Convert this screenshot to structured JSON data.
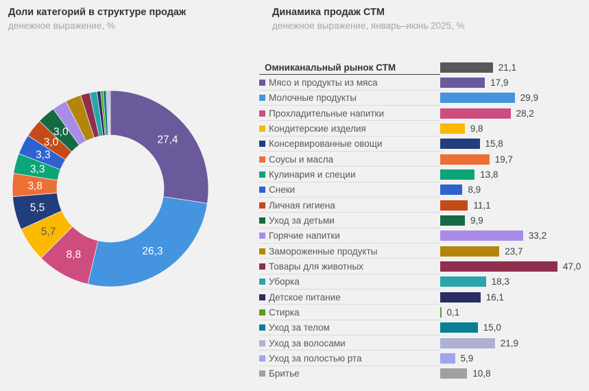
{
  "chart_data": [
    {
      "type": "pie",
      "donut": true,
      "title": "Доли категорий в структуре продаж",
      "subtitle": "денежное выражение, %",
      "start_angle_deg": 0,
      "direction": "clockwise",
      "legend_position": "none",
      "slices": [
        {
          "name": "Мясо и продукты из мяса",
          "value": 27.4,
          "label": "27,4",
          "label_color": "#ffffff",
          "color": "#6a5a9b"
        },
        {
          "name": "Молочные продукты",
          "value": 26.3,
          "label": "26,3",
          "label_color": "#ffffff",
          "color": "#4494e0"
        },
        {
          "name": "Прохладительные напитки",
          "value": 8.8,
          "label": "8,8",
          "label_color": "#ffffff",
          "color": "#ce4d7e"
        },
        {
          "name": "Кондитерские изделия",
          "value": 5.7,
          "label": "5,7",
          "label_color": "#595959",
          "color": "#fdb800"
        },
        {
          "name": "Консервированные овощи",
          "value": 5.5,
          "label": "5,5",
          "label_color": "#ffffff",
          "color": "#223d7b"
        },
        {
          "name": "Соусы и масла",
          "value": 3.8,
          "label": "3,8",
          "label_color": "#ffffff",
          "color": "#ed6f35"
        },
        {
          "name": "Кулинария и специи",
          "value": 3.3,
          "label": "3,3",
          "label_color": "#ffffff",
          "color": "#0ba578"
        },
        {
          "name": "Снеки",
          "value": 3.3,
          "label": "3,3",
          "label_color": "#ffffff",
          "color": "#2d62cf"
        },
        {
          "name": "Личная гигиена",
          "value": 3.0,
          "label": "3,0",
          "label_color": "#ffffff",
          "color": "#c64a18"
        },
        {
          "name": "Уход за детьми",
          "value": 3.0,
          "label": "3,0",
          "label_color": "#ffffff",
          "color": "#156a44"
        },
        {
          "name": "Горячие напитки",
          "value": 2.4,
          "label": "",
          "color": "#a98ce8"
        },
        {
          "name": "Замороженные продукты",
          "value": 2.6,
          "label": "",
          "color": "#b3860b"
        },
        {
          "name": "Товары для животных",
          "value": 1.5,
          "label": "",
          "color": "#8f2f4d"
        },
        {
          "name": "Уборка",
          "value": 1.2,
          "label": "",
          "color": "#2aa5a9"
        },
        {
          "name": "Детское питание",
          "value": 0.6,
          "label": "",
          "color": "#2b2d63"
        },
        {
          "name": "Стирка",
          "value": 0.4,
          "label": "",
          "color": "#5a9e1e"
        },
        {
          "name": "Уход за телом",
          "value": 0.5,
          "label": "",
          "color": "#087f94"
        },
        {
          "name": "Уход за волосами",
          "value": 0.3,
          "label": "",
          "color": "#aeb1d4"
        },
        {
          "name": "Уход за полостью рта",
          "value": 0.2,
          "label": "",
          "color": "#9fa5ef"
        },
        {
          "name": "Бритье",
          "value": 0.2,
          "label": "",
          "color": "#a0a0a0"
        }
      ]
    },
    {
      "type": "bar",
      "orientation": "horizontal",
      "title": "Динамика продаж СТМ",
      "subtitle": "денежное выражение, январь–июнь 2025, %",
      "xlim": [
        0,
        47
      ],
      "grid": false,
      "rows": [
        {
          "label": "Омниканальный рынок СТМ",
          "value": 21.1,
          "value_label": "21,1",
          "color": "#58585a",
          "header": true
        },
        {
          "label": "Мясо и продукты из мяса",
          "value": 17.9,
          "value_label": "17,9",
          "color": "#6a5a9b"
        },
        {
          "label": "Молочные продукты",
          "value": 29.9,
          "value_label": "29,9",
          "color": "#4494e0"
        },
        {
          "label": "Прохладительные напитки",
          "value": 28.2,
          "value_label": "28,2",
          "color": "#ce4d7e"
        },
        {
          "label": "Кондитерские изделия",
          "value": 9.8,
          "value_label": "9,8",
          "color": "#fdb800"
        },
        {
          "label": "Консервированные овощи",
          "value": 15.8,
          "value_label": "15,8",
          "color": "#223d7b"
        },
        {
          "label": "Соусы и масла",
          "value": 19.7,
          "value_label": "19,7",
          "color": "#ed6f35"
        },
        {
          "label": "Кулинария и специи",
          "value": 13.8,
          "value_label": "13,8",
          "color": "#0ba578"
        },
        {
          "label": "Снеки",
          "value": 8.9,
          "value_label": "8,9",
          "color": "#2d62cf"
        },
        {
          "label": "Личная гигиена",
          "value": 11.1,
          "value_label": "11,1",
          "color": "#c64a18"
        },
        {
          "label": "Уход за детьми",
          "value": 9.9,
          "value_label": "9,9",
          "color": "#156a44"
        },
        {
          "label": "Горячие напитки",
          "value": 33.2,
          "value_label": "33,2",
          "color": "#a98ce8"
        },
        {
          "label": "Замороженные продукты",
          "value": 23.7,
          "value_label": "23,7",
          "color": "#b3860b"
        },
        {
          "label": "Товары для животных",
          "value": 47.0,
          "value_label": "47,0",
          "color": "#8f2f4d"
        },
        {
          "label": "Уборка",
          "value": 18.3,
          "value_label": "18,3",
          "color": "#2aa5a9"
        },
        {
          "label": "Детское питание",
          "value": 16.1,
          "value_label": "16,1",
          "color": "#2b2d63"
        },
        {
          "label": "Стирка",
          "value": 0.1,
          "value_label": "0,1",
          "color": "#5a9e1e"
        },
        {
          "label": "Уход за телом",
          "value": 15.0,
          "value_label": "15,0",
          "color": "#087f94"
        },
        {
          "label": "Уход за волосами",
          "value": 21.9,
          "value_label": "21,9",
          "color": "#aeb1d4"
        },
        {
          "label": "Уход за полостью рта",
          "value": 5.9,
          "value_label": "5,9",
          "color": "#9fa5ef"
        },
        {
          "label": "Бритье",
          "value": 10.8,
          "value_label": "10,8",
          "color": "#a0a0a0"
        }
      ]
    }
  ]
}
